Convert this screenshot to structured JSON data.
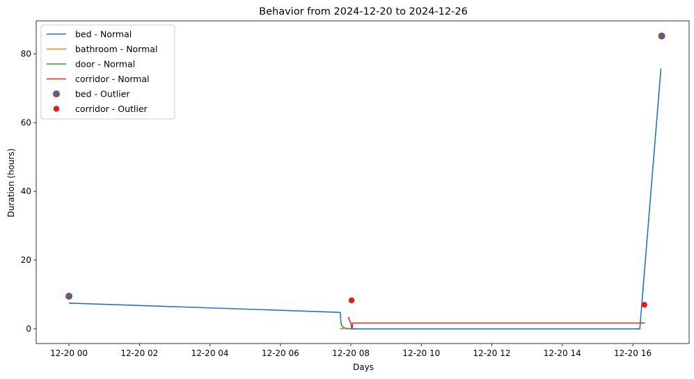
{
  "chart_data": {
    "type": "line",
    "title": "Behavior from 2024-12-20 to 2024-12-26",
    "xlabel": "Days",
    "ylabel": "Duration (hours)",
    "x_unit": "hours",
    "xlim": [
      -0.93,
      17.6
    ],
    "ylim": [
      -4.27,
      89.6
    ],
    "grid": false,
    "legend_position": "top-left",
    "x_ticks": [
      {
        "value": 0,
        "label": "12-20 00"
      },
      {
        "value": 2,
        "label": "12-20 02"
      },
      {
        "value": 4,
        "label": "12-20 04"
      },
      {
        "value": 6,
        "label": "12-20 06"
      },
      {
        "value": 8,
        "label": "12-20 08"
      },
      {
        "value": 10,
        "label": "12-20 10"
      },
      {
        "value": 12,
        "label": "12-20 12"
      },
      {
        "value": 14,
        "label": "12-20 14"
      },
      {
        "value": 16,
        "label": "12-20 16"
      }
    ],
    "y_ticks": [
      0,
      20,
      40,
      60,
      80
    ],
    "series": [
      {
        "name": "bed - Normal",
        "kind": "line",
        "color": "#1f77b4",
        "x": [
          0.0,
          7.7,
          7.72,
          7.74,
          7.78,
          7.82,
          7.87,
          7.92,
          8.0,
          10.0,
          12.0,
          14.0,
          16.2,
          16.8
        ],
        "y": [
          7.5,
          4.8,
          1.8,
          1.0,
          0.5,
          0.3,
          0.1,
          0.1,
          0.0,
          0.0,
          0.0,
          0.0,
          0.0,
          75.7
        ]
      },
      {
        "name": "bathroom - Normal",
        "kind": "line",
        "color": "#ff7f0e",
        "x": [
          7.68,
          7.8,
          7.9
        ],
        "y": [
          0.1,
          0.1,
          0.1
        ]
      },
      {
        "name": "door - Normal",
        "kind": "line",
        "color": "#2ca02c",
        "x": [
          7.85,
          7.95
        ],
        "y": [
          0.05,
          0.05
        ]
      },
      {
        "name": "corridor - Normal",
        "kind": "line",
        "color": "#d62728",
        "x": [
          7.93,
          7.96,
          8.0,
          8.02,
          8.04,
          8.05,
          10.0,
          12.0,
          14.0,
          16.35
        ],
        "y": [
          3.5,
          2.5,
          1.8,
          0.2,
          0.2,
          1.7,
          1.7,
          1.7,
          1.7,
          1.7
        ]
      },
      {
        "name": "bed - Outlier",
        "kind": "scatter",
        "color": "#1f77b4",
        "edge_color": "#e41a1c",
        "x": [
          0.0,
          16.82
        ],
        "y": [
          9.5,
          85.2
        ]
      },
      {
        "name": "corridor - Outlier",
        "kind": "scatter",
        "color": "#e41a1c",
        "x": [
          8.02,
          16.33
        ],
        "y": [
          8.3,
          7.0
        ]
      }
    ]
  }
}
